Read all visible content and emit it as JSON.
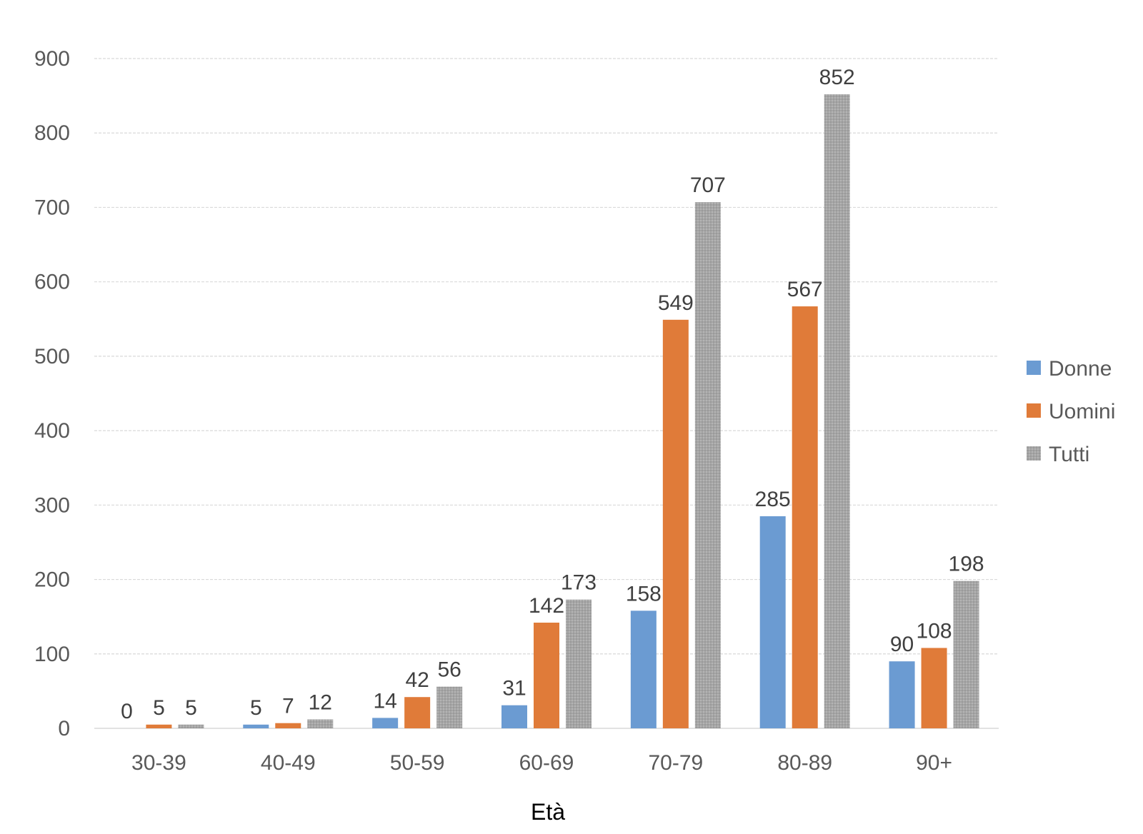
{
  "chart_data": {
    "type": "bar",
    "title": "",
    "xlabel": "Età",
    "ylabel": "",
    "ylim": [
      0,
      900
    ],
    "yticks": [
      0,
      100,
      200,
      300,
      400,
      500,
      600,
      700,
      800,
      900
    ],
    "grid": true,
    "legend_position": "right",
    "categories": [
      "30-39",
      "40-49",
      "50-59",
      "60-69",
      "70-79",
      "80-89",
      "90+"
    ],
    "series": [
      {
        "name": "Donne",
        "color": "#6b9bd2",
        "values": [
          0,
          5,
          14,
          31,
          158,
          285,
          90
        ]
      },
      {
        "name": "Uomini",
        "color": "#e07b39",
        "values": [
          5,
          7,
          42,
          142,
          549,
          567,
          108
        ]
      },
      {
        "name": "Tutti",
        "color": "#a5a5a5",
        "values": [
          5,
          12,
          56,
          173,
          707,
          852,
          198
        ]
      }
    ]
  }
}
